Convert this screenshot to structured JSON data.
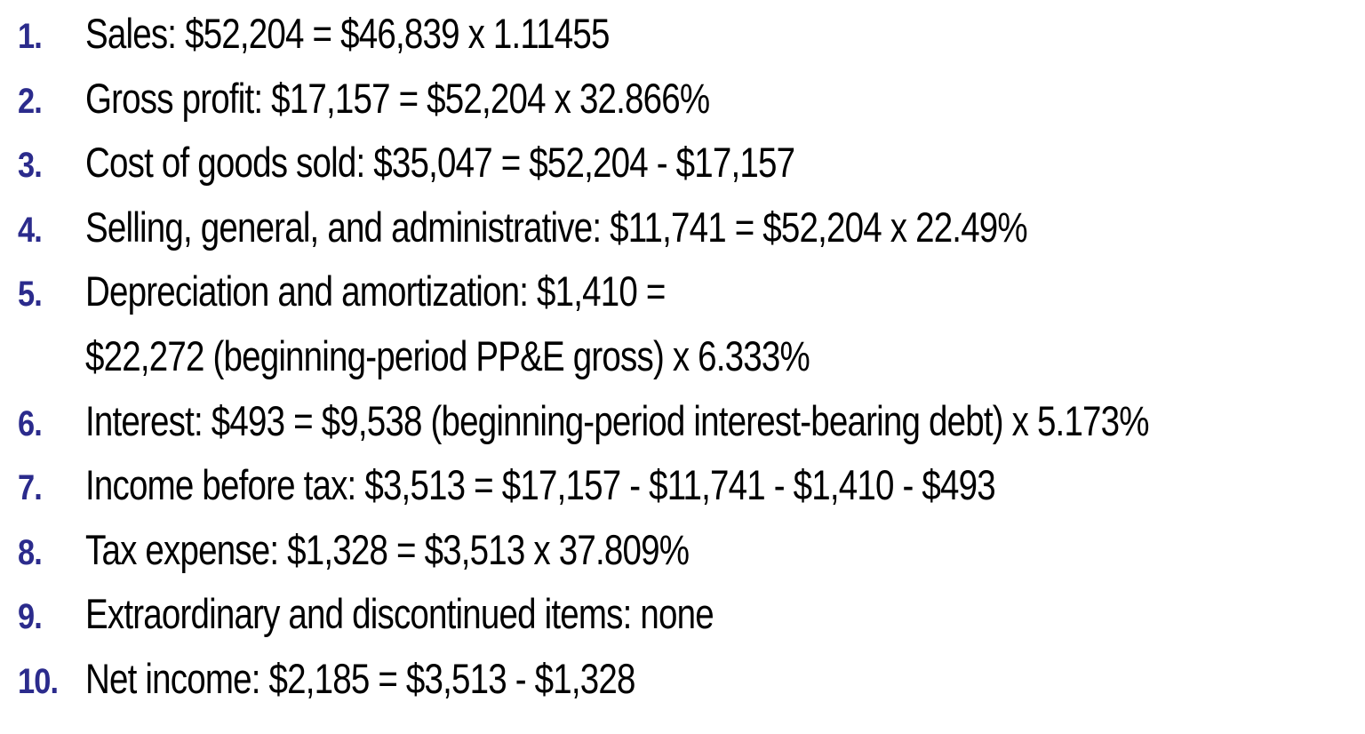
{
  "items": [
    {
      "number": "1.",
      "text": "Sales: $52,204 = $46,839 x 1.11455"
    },
    {
      "number": "2.",
      "text": "Gross profit: $17,157 = $52,204 x 32.866%"
    },
    {
      "number": "3.",
      "text": "Cost of goods sold: $35,047 = $52,204 - $17,157"
    },
    {
      "number": "4.",
      "text": "Selling, general, and administrative: $11,741 = $52,204 x 22.49%"
    },
    {
      "number": "5.",
      "text": "Depreciation and amortization: $1,410 =",
      "continuation": "$22,272 (beginning-period PP&E gross) x 6.333%"
    },
    {
      "number": "6.",
      "text": "Interest: $493 = $9,538 (beginning-period interest-bearing debt) x 5.173%"
    },
    {
      "number": "7.",
      "text": "Income before tax: $3,513 = $17,157 - $11,741 - $1,410 - $493"
    },
    {
      "number": "8.",
      "text": "Tax expense: $1,328 = $3,513 x 37.809%"
    },
    {
      "number": "9.",
      "text": "Extraordinary and discontinued items: none"
    },
    {
      "number": "10.",
      "text": "Net income: $2,185 = $3,513 - $1,328"
    }
  ]
}
